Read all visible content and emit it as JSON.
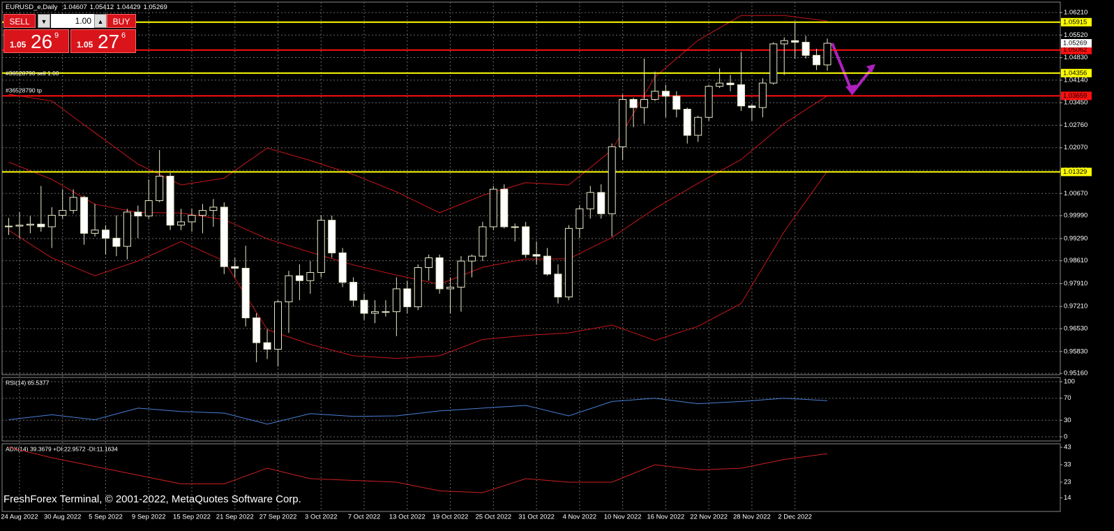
{
  "window": {
    "symbol": "EURUSD_e,Daily"
  },
  "trade_panel": {
    "sell": "SELL",
    "buy": "BUY",
    "lot": "1.00",
    "bid_big": "1.05",
    "bid_pips": "26",
    "bid_frac": "9",
    "ask_big": "1.05",
    "ask_pips": "27",
    "ask_frac": "6"
  },
  "watermark": "FreshForex Terminal, © 2001-2022, MetaQuotes Software Corp.",
  "chart_data": [
    {
      "type": "candlestick",
      "categories": [
        null,
        "24 Aug 2022",
        null,
        null,
        null,
        "30 Aug 2022",
        null,
        null,
        null,
        "5 Sep 2022",
        null,
        null,
        null,
        "9 Sep 2022",
        null,
        null,
        null,
        "15 Sep 2022",
        null,
        null,
        null,
        "21 Sep 2022",
        null,
        null,
        null,
        "27 Sep 2022",
        null,
        null,
        null,
        "3 Oct 2022",
        null,
        null,
        null,
        "7 Oct 2022",
        null,
        null,
        null,
        "13 Oct 2022",
        null,
        null,
        null,
        "19 Oct 2022",
        null,
        null,
        null,
        "25 Oct 2022",
        null,
        null,
        null,
        "31 Oct 2022",
        null,
        null,
        null,
        "4 Nov 2022",
        null,
        null,
        null,
        "10 Nov 2022",
        null,
        null,
        null,
        "16 Nov 2022",
        null,
        null,
        null,
        "22 Nov 2022",
        null,
        null,
        null,
        "28 Nov 2022",
        null,
        null,
        null,
        "2 Dec 2022",
        null,
        null,
        null
      ],
      "candles": [
        [
          0.9965,
          0.9992,
          0.994,
          0.9967
        ],
        [
          0.9967,
          1.001,
          0.993,
          0.997
        ],
        [
          0.997,
          0.9998,
          0.9945,
          0.9973
        ],
        [
          0.9973,
          1.009,
          0.995,
          0.9965
        ],
        [
          0.9965,
          1.0025,
          0.99,
          1.0
        ],
        [
          1.0,
          1.008,
          0.999,
          1.0015
        ],
        [
          1.0015,
          1.008,
          1.0005,
          1.0055
        ],
        [
          1.0055,
          1.006,
          0.991,
          0.9945
        ],
        [
          0.9945,
          1.0035,
          0.9935,
          0.9955
        ],
        [
          0.9955,
          0.997,
          0.988,
          0.993
        ],
        [
          0.993,
          1.0,
          0.9875,
          0.9905
        ],
        [
          0.9905,
          1.002,
          0.9865,
          1.001
        ],
        [
          1.001,
          1.003,
          0.993,
          0.9998
        ],
        [
          0.9998,
          1.011,
          0.999,
          1.0045
        ],
        [
          1.0045,
          1.02,
          1.004,
          1.012
        ],
        [
          1.012,
          1.013,
          0.9955,
          0.997
        ],
        [
          0.997,
          1.002,
          0.9955,
          0.998
        ],
        [
          0.998,
          1.002,
          0.995,
          1.0
        ],
        [
          1.0,
          1.0035,
          0.9945,
          1.0015
        ],
        [
          1.0015,
          1.005,
          0.9965,
          1.0025
        ],
        [
          1.0025,
          1.004,
          0.982,
          0.9843
        ],
        [
          0.9843,
          0.987,
          0.981,
          0.9838
        ],
        [
          0.9838,
          0.9907,
          0.966,
          0.9686
        ],
        [
          0.9686,
          0.97,
          0.955,
          0.961
        ],
        [
          0.961,
          0.965,
          0.956,
          0.959
        ],
        [
          0.959,
          0.974,
          0.9537,
          0.9735
        ],
        [
          0.9735,
          0.983,
          0.964,
          0.9815
        ],
        [
          0.9815,
          0.985,
          0.974,
          0.98
        ],
        [
          0.98,
          0.986,
          0.976,
          0.9825
        ],
        [
          0.9825,
          1.0,
          0.981,
          0.9985
        ],
        [
          0.9985,
          0.9999,
          0.987,
          0.9885
        ],
        [
          0.9885,
          0.99,
          0.978,
          0.9795
        ],
        [
          0.9795,
          0.981,
          0.972,
          0.974
        ],
        [
          0.974,
          0.976,
          0.968,
          0.97
        ],
        [
          0.97,
          0.974,
          0.967,
          0.9705
        ],
        [
          0.9705,
          0.974,
          0.969,
          0.9705
        ],
        [
          0.9705,
          0.981,
          0.963,
          0.9775
        ],
        [
          0.9775,
          0.98,
          0.97,
          0.972
        ],
        [
          0.972,
          0.985,
          0.971,
          0.984
        ],
        [
          0.984,
          0.988,
          0.98,
          0.987
        ],
        [
          0.987,
          0.988,
          0.976,
          0.9775
        ],
        [
          0.9775,
          0.981,
          0.97,
          0.978
        ],
        [
          0.978,
          0.9875,
          0.9705,
          0.986
        ],
        [
          0.986,
          0.988,
          0.981,
          0.9875
        ],
        [
          0.9875,
          0.998,
          0.986,
          0.9965
        ],
        [
          0.9965,
          1.009,
          0.9955,
          1.008
        ],
        [
          1.008,
          1.0095,
          0.996,
          0.9965
        ],
        [
          0.9965,
          0.9975,
          0.992,
          0.9965
        ],
        [
          0.9965,
          0.998,
          0.987,
          0.988
        ],
        [
          0.988,
          0.992,
          0.985,
          0.9875
        ],
        [
          0.9875,
          0.99,
          0.9815,
          0.982
        ],
        [
          0.982,
          0.985,
          0.973,
          0.975
        ],
        [
          0.975,
          0.997,
          0.974,
          0.996
        ],
        [
          0.996,
          1.003,
          0.993,
          1.002
        ],
        [
          1.002,
          1.009,
          0.999,
          1.007
        ],
        [
          1.007,
          1.0095,
          0.999,
          1.0005
        ],
        [
          1.0005,
          1.022,
          0.9935,
          1.021
        ],
        [
          1.021,
          1.037,
          1.017,
          1.0355
        ],
        [
          1.0355,
          1.036,
          1.027,
          1.033
        ],
        [
          1.033,
          1.048,
          1.028,
          1.0355
        ],
        [
          1.0355,
          1.044,
          1.035,
          1.038
        ],
        [
          1.038,
          1.04,
          1.03,
          1.0365
        ],
        [
          1.0365,
          1.038,
          1.03,
          1.0325
        ],
        [
          1.0325,
          1.033,
          1.022,
          1.0245
        ],
        [
          1.0245,
          1.0305,
          1.0225,
          1.03
        ],
        [
          1.03,
          1.04,
          1.029,
          1.0395
        ],
        [
          1.0395,
          1.045,
          1.039,
          1.0405
        ],
        [
          1.0405,
          1.043,
          1.038,
          1.04
        ],
        [
          1.04,
          1.05,
          1.032,
          1.0335
        ],
        [
          1.0335,
          1.034,
          1.029,
          1.033
        ],
        [
          1.033,
          1.042,
          1.03,
          1.0405
        ],
        [
          1.0405,
          1.053,
          1.04,
          1.0525
        ],
        [
          1.0525,
          1.0545,
          1.043,
          1.0535
        ],
        [
          1.0535,
          1.0594,
          1.048,
          1.053
        ],
        [
          1.053,
          1.055,
          1.048,
          1.049
        ],
        [
          1.049,
          1.051,
          1.0445,
          1.0461
        ],
        [
          1.04607,
          1.05412,
          1.04429,
          1.05269
        ]
      ],
      "series": [
        {
          "color": "#c8161a",
          "x": [
            0,
            4,
            8,
            12,
            16,
            20,
            24,
            28,
            32,
            36,
            40,
            44,
            48,
            52,
            56,
            60,
            64,
            68,
            72,
            76
          ],
          "values": [
            1.0371,
            1.035,
            1.0253,
            1.0157,
            1.0093,
            1.0114,
            1.0206,
            1.0168,
            1.0125,
            1.0072,
            1.0008,
            1.0061,
            1.01,
            1.0093,
            1.02,
            1.0424,
            1.0536,
            1.0612,
            1.0612,
            1.0595
          ]
        },
        {
          "color": "#c8161a",
          "x": [
            0,
            4,
            8,
            12,
            16,
            20,
            24,
            28,
            32,
            36,
            40,
            44,
            48,
            52,
            56,
            60,
            64,
            68,
            72,
            76
          ],
          "values": [
            1.0163,
            1.011,
            1.0034,
            1.0009,
            1.0007,
            0.9987,
            0.9928,
            0.9887,
            0.9848,
            0.9817,
            0.9789,
            0.9841,
            0.9866,
            0.9867,
            0.9932,
            1.0021,
            1.0098,
            1.0171,
            1.0281,
            1.0366
          ]
        },
        {
          "color": "#c8161a",
          "x": [
            0,
            4,
            8,
            12,
            16,
            20,
            24,
            28,
            32,
            36,
            40,
            44,
            48,
            52,
            56,
            60,
            64,
            68,
            72,
            76
          ],
          "values": [
            0.9954,
            0.987,
            0.9815,
            0.986,
            0.992,
            0.986,
            0.965,
            0.9605,
            0.957,
            0.9562,
            0.957,
            0.962,
            0.9632,
            0.964,
            0.9664,
            0.9617,
            0.966,
            0.973,
            0.995,
            1.0136
          ]
        }
      ],
      "hlines": [
        {
          "price": 1.05915,
          "color": "#ffff00"
        },
        {
          "price": 1.05062,
          "color": "#ff1010"
        },
        {
          "price": 1.04356,
          "color": "#ffff00"
        },
        {
          "price": 1.03659,
          "color": "#ff1010"
        },
        {
          "price": 1.01329,
          "color": "#ffff00"
        }
      ],
      "annotations": [
        "#36528790 sell 1.00",
        "#36528790 tp"
      ],
      "ylim": [
        0.9512,
        1.0653
      ],
      "yticks": [
        {
          "value": 1.0621,
          "label": "1.06210"
        },
        {
          "value": 1.0552,
          "label": "1.05520"
        },
        {
          "value": 1.0483,
          "label": "1.04830"
        },
        {
          "value": 1.0414,
          "label": "1.04140"
        },
        {
          "value": 1.0345,
          "label": "1.03450"
        },
        {
          "value": 1.0276,
          "label": "1.02760"
        },
        {
          "value": 1.0207,
          "label": "1.02070"
        },
        {
          "value": 1.0138,
          "label": "1.01380"
        },
        {
          "value": 1.0067,
          "label": "1.00670"
        },
        {
          "value": 0.9999,
          "label": "0.99990"
        },
        {
          "value": 0.9929,
          "label": "0.99290"
        },
        {
          "value": 0.9861,
          "label": "0.98610"
        },
        {
          "value": 0.9791,
          "label": "0.97910"
        },
        {
          "value": 0.9721,
          "label": "0.97210"
        },
        {
          "value": 0.9653,
          "label": "0.96530"
        },
        {
          "value": 0.9583,
          "label": "0.95830"
        },
        {
          "value": 0.9516,
          "label": "0.95160"
        }
      ],
      "grid": true
    },
    {
      "type": "line",
      "title": "RSI(14) 65.5377",
      "series": [
        {
          "color": "#4a7fd6",
          "x": [
            0,
            4,
            8,
            12,
            16,
            20,
            24,
            28,
            32,
            36,
            40,
            44,
            48,
            52,
            56,
            60,
            64,
            68,
            72,
            76
          ],
          "values": [
            31,
            40,
            31,
            52,
            46,
            43,
            23,
            42,
            37,
            38,
            47,
            52,
            57,
            38,
            64,
            70,
            60,
            64,
            70,
            65.5377
          ]
        }
      ],
      "ylim": [
        -7.6,
        107.6
      ],
      "yticks": [
        100,
        70,
        30,
        0
      ],
      "grid": true
    },
    {
      "type": "line",
      "title": "ADX(14) 39.3679 +DI:22.9572 -DI:11.1634",
      "series": [
        {
          "color": "#cc2020",
          "x": [
            0,
            4,
            8,
            12,
            16,
            20,
            24,
            28,
            32,
            36,
            40,
            44,
            48,
            52,
            56,
            60,
            64,
            68,
            72,
            76
          ],
          "values": [
            43,
            37,
            32,
            27,
            22,
            22,
            31,
            25,
            24,
            23,
            18,
            17,
            25,
            23,
            23,
            33,
            30,
            31,
            36,
            39.3679
          ]
        }
      ],
      "ylim": [
        6.2,
        45
      ],
      "yticks": [
        43,
        33,
        23,
        14
      ],
      "grid": false
    }
  ]
}
